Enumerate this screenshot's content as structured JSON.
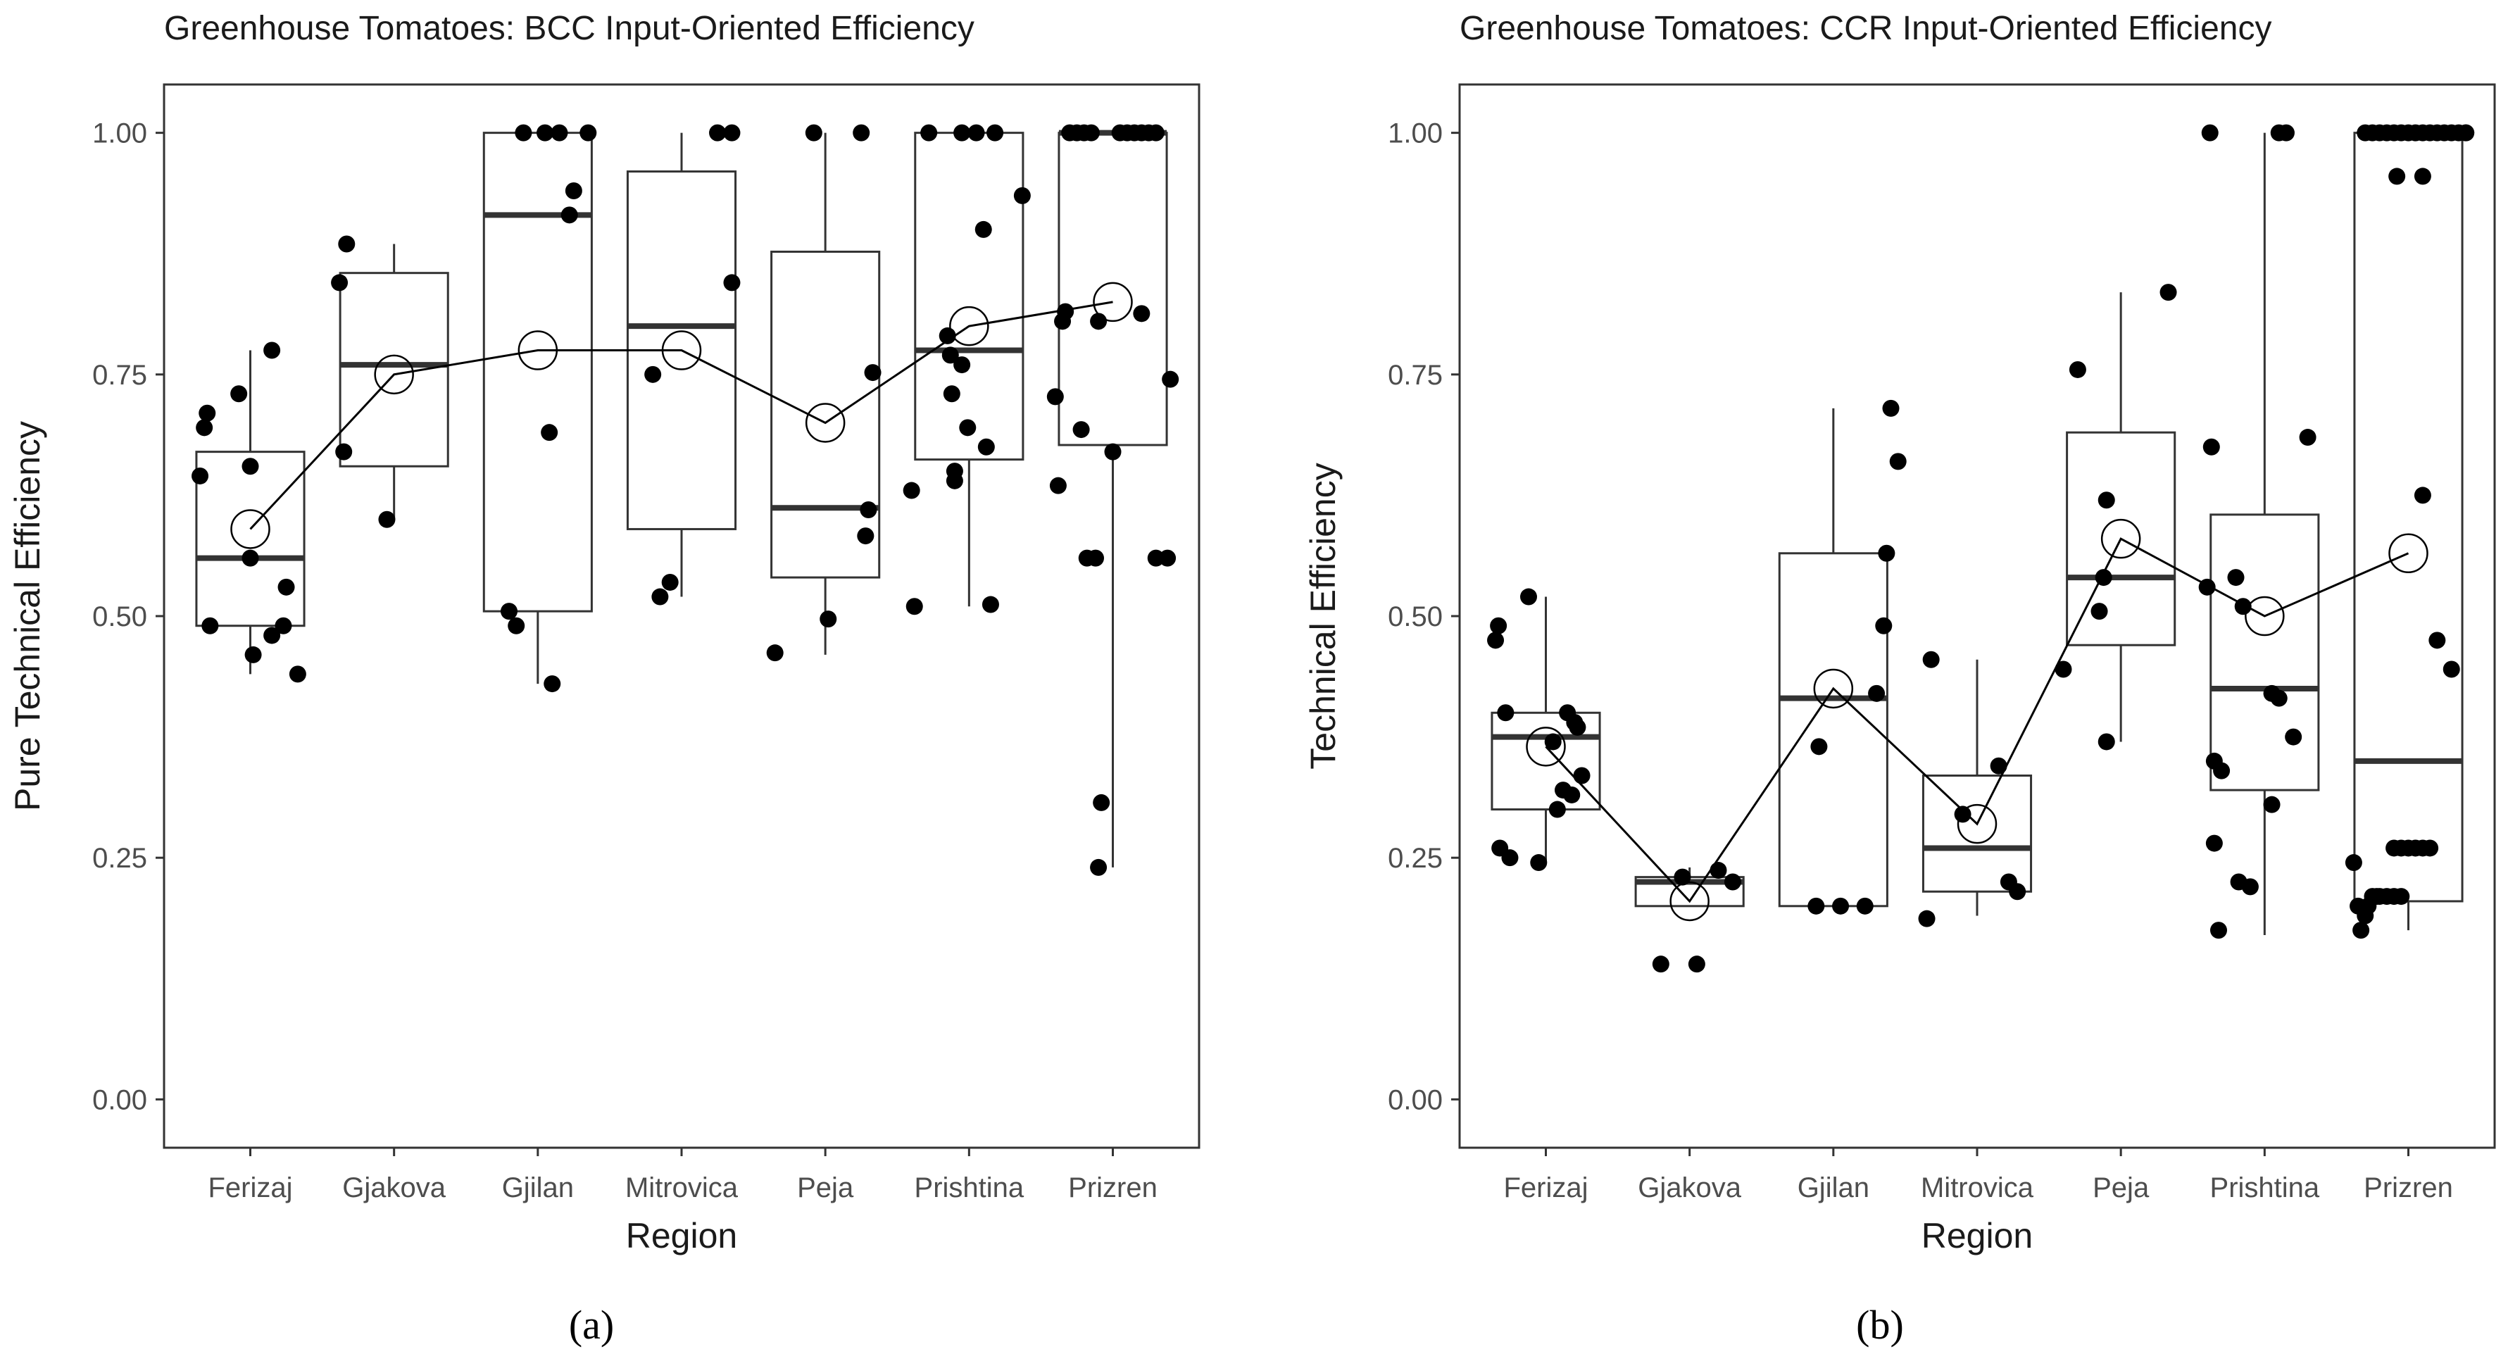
{
  "chart_data": [
    {
      "type": "box",
      "panel_label": "(a)",
      "title": "Greenhouse Tomatoes: BCC Input-Oriented Efficiency",
      "xlabel": "Region",
      "ylabel": "Pure Technical Efficiency",
      "ylim": [
        -0.05,
        1.05
      ],
      "yticks": [
        "0.00",
        "0.25",
        "0.50",
        "0.75",
        "1.00"
      ],
      "categories": [
        "Ferizaj",
        "Gjakova",
        "Gjilan",
        "Mitrovica",
        "Peja",
        "Prishtina",
        "Prizren"
      ],
      "boxes": [
        {
          "whisker_low": 0.44,
          "q1": 0.49,
          "median": 0.56,
          "q3": 0.67,
          "whisker_high": 0.775
        },
        {
          "whisker_low": 0.6,
          "q1": 0.655,
          "median": 0.76,
          "q3": 0.855,
          "whisker_high": 0.885
        },
        {
          "whisker_low": 0.43,
          "q1": 0.505,
          "median": 0.915,
          "q3": 1.0,
          "whisker_high": 1.0
        },
        {
          "whisker_low": 0.52,
          "q1": 0.59,
          "median": 0.8,
          "q3": 0.96,
          "whisker_high": 1.0
        },
        {
          "whisker_low": 0.46,
          "q1": 0.54,
          "median": 0.612,
          "q3": 0.877,
          "whisker_high": 1.0
        },
        {
          "whisker_low": 0.51,
          "q1": 0.662,
          "median": 0.775,
          "q3": 1.0,
          "whisker_high": 1.0
        },
        {
          "whisker_low": 0.24,
          "q1": 0.677,
          "median": 1.0,
          "q3": 1.0,
          "whisker_high": 1.0
        }
      ],
      "means": [
        0.59,
        0.75,
        0.775,
        0.775,
        0.7,
        0.8,
        0.825
      ],
      "points": [
        [
          [
            -0.35,
            0.645
          ],
          [
            -0.32,
            0.695
          ],
          [
            -0.3,
            0.71
          ],
          [
            -0.28,
            0.49
          ],
          [
            -0.08,
            0.73
          ],
          [
            0.0,
            0.56
          ],
          [
            0.0,
            0.655
          ],
          [
            0.02,
            0.46
          ],
          [
            0.15,
            0.775
          ],
          [
            0.15,
            0.48
          ],
          [
            0.23,
            0.49
          ],
          [
            0.25,
            0.53
          ],
          [
            0.33,
            0.44
          ]
        ],
        [
          [
            -0.38,
            0.845
          ],
          [
            -0.35,
            0.67
          ],
          [
            -0.33,
            0.885
          ],
          [
            -0.05,
            0.6
          ]
        ],
        [
          [
            -0.2,
            0.505
          ],
          [
            -0.15,
            0.49
          ],
          [
            -0.1,
            1.0
          ],
          [
            0.05,
            1.0
          ],
          [
            0.08,
            0.69
          ],
          [
            0.1,
            0.43
          ],
          [
            0.15,
            1.0
          ],
          [
            0.22,
            0.915
          ],
          [
            0.25,
            0.94
          ],
          [
            0.35,
            1.0
          ]
        ],
        [
          [
            -0.2,
            0.75
          ],
          [
            -0.15,
            0.52
          ],
          [
            -0.08,
            0.535
          ],
          [
            0.25,
            1.0
          ],
          [
            0.35,
            1.0
          ],
          [
            0.35,
            0.845
          ]
        ],
        [
          [
            -0.35,
            0.462
          ],
          [
            0.02,
            0.497
          ],
          [
            -0.08,
            1.0
          ],
          [
            0.25,
            1.0
          ],
          [
            0.3,
            0.61
          ],
          [
            0.28,
            0.583
          ],
          [
            0.33,
            0.752
          ]
        ],
        [
          [
            -0.38,
            0.51
          ],
          [
            -0.4,
            0.63
          ],
          [
            -0.28,
            1.0
          ],
          [
            -0.15,
            0.79
          ],
          [
            -0.13,
            0.77
          ],
          [
            -0.12,
            0.73
          ],
          [
            -0.1,
            0.65
          ],
          [
            -0.1,
            0.64
          ],
          [
            -0.05,
            1.0
          ],
          [
            0.05,
            1.0
          ],
          [
            -0.05,
            0.76
          ],
          [
            -0.01,
            0.695
          ],
          [
            0.1,
            0.9
          ],
          [
            0.12,
            0.675
          ],
          [
            0.15,
            0.512
          ],
          [
            0.18,
            1.0
          ],
          [
            0.37,
            0.935
          ]
        ],
        [
          [
            -0.4,
            0.727
          ],
          [
            -0.38,
            0.635
          ],
          [
            -0.35,
            0.805
          ],
          [
            -0.33,
            0.815
          ],
          [
            -0.3,
            1.0
          ],
          [
            -0.25,
            1.0
          ],
          [
            -0.2,
            1.0
          ],
          [
            -0.15,
            1.0
          ],
          [
            -0.22,
            0.693
          ],
          [
            -0.18,
            0.56
          ],
          [
            -0.12,
            0.56
          ],
          [
            -0.1,
            0.805
          ],
          [
            -0.08,
            0.307
          ],
          [
            -0.1,
            0.24
          ],
          [
            0.0,
            0.67
          ],
          [
            0.05,
            1.0
          ],
          [
            0.1,
            1.0
          ],
          [
            0.15,
            1.0
          ],
          [
            0.2,
            1.0
          ],
          [
            0.25,
            1.0
          ],
          [
            0.3,
            1.0
          ],
          [
            0.2,
            0.813
          ],
          [
            0.3,
            0.56
          ],
          [
            0.38,
            0.56
          ],
          [
            0.4,
            0.745
          ]
        ]
      ]
    },
    {
      "type": "box",
      "panel_label": "(b)",
      "title": "Greenhouse Tomatoes: CCR Input-Oriented Efficiency",
      "xlabel": "Region",
      "ylabel": "Technical Efficiency",
      "ylim": [
        -0.05,
        1.05
      ],
      "yticks": [
        "0.00",
        "0.25",
        "0.50",
        "0.75",
        "1.00"
      ],
      "categories": [
        "Ferizaj",
        "Gjakova",
        "Gjilan",
        "Mitrovica",
        "Peja",
        "Prishtina",
        "Prizren"
      ],
      "boxes": [
        {
          "whisker_low": 0.245,
          "q1": 0.3,
          "median": 0.375,
          "q3": 0.4,
          "whisker_high": 0.52
        },
        {
          "whisker_low": 0.2,
          "q1": 0.2,
          "median": 0.225,
          "q3": 0.23,
          "whisker_high": 0.24
        },
        {
          "whisker_low": 0.2,
          "q1": 0.2,
          "median": 0.415,
          "q3": 0.565,
          "whisker_high": 0.715
        },
        {
          "whisker_low": 0.19,
          "q1": 0.215,
          "median": 0.26,
          "q3": 0.335,
          "whisker_high": 0.455
        },
        {
          "whisker_low": 0.37,
          "q1": 0.47,
          "median": 0.54,
          "q3": 0.69,
          "whisker_high": 0.835
        },
        {
          "whisker_low": 0.17,
          "q1": 0.32,
          "median": 0.425,
          "q3": 0.605,
          "whisker_high": 1.0
        },
        {
          "whisker_low": 0.175,
          "q1": 0.205,
          "median": 0.35,
          "q3": 1.0,
          "whisker_high": 1.0
        }
      ],
      "means": [
        0.365,
        0.205,
        0.425,
        0.285,
        0.58,
        0.5,
        0.565
      ],
      "points": [
        [
          [
            -0.35,
            0.475
          ],
          [
            -0.33,
            0.49
          ],
          [
            -0.32,
            0.26
          ],
          [
            -0.28,
            0.4
          ],
          [
            -0.25,
            0.25
          ],
          [
            -0.05,
            0.245
          ],
          [
            -0.12,
            0.52
          ],
          [
            0.05,
            0.37
          ],
          [
            0.08,
            0.3
          ],
          [
            0.12,
            0.32
          ],
          [
            0.15,
            0.4
          ],
          [
            0.18,
            0.315
          ],
          [
            0.2,
            0.39
          ],
          [
            0.22,
            0.385
          ],
          [
            0.25,
            0.335
          ]
        ],
        [
          [
            -0.2,
            0.14
          ],
          [
            -0.05,
            0.23
          ],
          [
            0.05,
            0.14
          ],
          [
            0.2,
            0.237
          ],
          [
            0.3,
            0.225
          ]
        ],
        [
          [
            -0.1,
            0.365
          ],
          [
            -0.12,
            0.2
          ],
          [
            0.05,
            0.2
          ],
          [
            0.22,
            0.2
          ],
          [
            0.3,
            0.42
          ],
          [
            0.35,
            0.49
          ],
          [
            0.37,
            0.565
          ],
          [
            0.4,
            0.715
          ],
          [
            0.45,
            0.66
          ]
        ],
        [
          [
            -0.35,
            0.187
          ],
          [
            -0.32,
            0.455
          ],
          [
            -0.1,
            0.295
          ],
          [
            0.15,
            0.345
          ],
          [
            0.22,
            0.225
          ],
          [
            0.28,
            0.215
          ]
        ],
        [
          [
            -0.4,
            0.445
          ],
          [
            -0.3,
            0.755
          ],
          [
            -0.15,
            0.505
          ],
          [
            -0.12,
            0.54
          ],
          [
            -0.1,
            0.62
          ],
          [
            -0.1,
            0.37
          ],
          [
            0.33,
            0.835
          ]
        ],
        [
          [
            -0.4,
            0.53
          ],
          [
            -0.38,
            1.0
          ],
          [
            -0.37,
            0.675
          ],
          [
            -0.35,
            0.265
          ],
          [
            -0.35,
            0.35
          ],
          [
            -0.3,
            0.34
          ],
          [
            -0.32,
            0.175
          ],
          [
            -0.2,
            0.54
          ],
          [
            -0.18,
            0.225
          ],
          [
            -0.15,
            0.51
          ],
          [
            -0.1,
            0.22
          ],
          [
            0.05,
            0.42
          ],
          [
            0.1,
            0.415
          ],
          [
            0.05,
            0.305
          ],
          [
            0.1,
            1.0
          ],
          [
            0.15,
            1.0
          ],
          [
            0.2,
            0.375
          ],
          [
            0.3,
            0.685
          ]
        ],
        [
          [
            -0.38,
            0.245
          ],
          [
            -0.35,
            0.2
          ],
          [
            -0.33,
            0.175
          ],
          [
            -0.3,
            0.19
          ],
          [
            -0.28,
            0.2
          ],
          [
            -0.25,
            0.21
          ],
          [
            -0.22,
            0.21
          ],
          [
            -0.2,
            0.21
          ],
          [
            -0.15,
            0.21
          ],
          [
            -0.1,
            0.21
          ],
          [
            -0.05,
            0.21
          ],
          [
            -0.3,
            1.0
          ],
          [
            -0.25,
            1.0
          ],
          [
            -0.2,
            1.0
          ],
          [
            -0.15,
            1.0
          ],
          [
            -0.1,
            1.0
          ],
          [
            -0.05,
            1.0
          ],
          [
            0.0,
            1.0
          ],
          [
            0.05,
            1.0
          ],
          [
            0.1,
            1.0
          ],
          [
            0.15,
            1.0
          ],
          [
            0.2,
            1.0
          ],
          [
            0.25,
            1.0
          ],
          [
            0.3,
            1.0
          ],
          [
            0.35,
            1.0
          ],
          [
            0.4,
            1.0
          ],
          [
            -0.08,
            0.955
          ],
          [
            0.1,
            0.955
          ],
          [
            -0.1,
            0.26
          ],
          [
            -0.05,
            0.26
          ],
          [
            0.0,
            0.26
          ],
          [
            0.05,
            0.26
          ],
          [
            0.1,
            0.26
          ],
          [
            0.15,
            0.26
          ],
          [
            0.1,
            0.625
          ],
          [
            0.2,
            0.475
          ],
          [
            0.3,
            0.445
          ],
          [
            0.4,
            1.0
          ]
        ]
      ]
    }
  ]
}
